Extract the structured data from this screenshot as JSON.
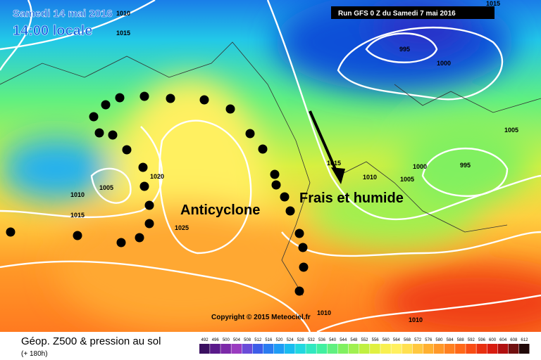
{
  "header": {
    "date": "Samedi 14 mai 2016",
    "time": "14:00 locale",
    "run": "Run GFS 0 Z du Samedi 7 mai 2016"
  },
  "isobar_labels": [
    "1010",
    "1015",
    "1015",
    "995",
    "1000",
    "1005",
    "1000",
    "995",
    "1010",
    "1005",
    "1015",
    "1020",
    "1005",
    "1010",
    "1015",
    "1025",
    "1010",
    "1010"
  ],
  "annotations": {
    "high": "Anticyclone",
    "low": "Frais et humide",
    "copyright": "Copyright © 2015 Meteociel.fr"
  },
  "footer": {
    "title": "Géop. Z500 & pression au sol",
    "lead": "(+ 180h)"
  },
  "legend": {
    "values": [
      492,
      496,
      500,
      504,
      508,
      512,
      516,
      520,
      524,
      528,
      532,
      536,
      540,
      544,
      548,
      552,
      556,
      560,
      564,
      568,
      572,
      576,
      580,
      584,
      588,
      592,
      596,
      600,
      604,
      608,
      612
    ],
    "colors": [
      "#3a1060",
      "#5a1a8a",
      "#7b2aa8",
      "#9a3cc0",
      "#6a4cd8",
      "#3d5de8",
      "#2a7cf0",
      "#1e9cf5",
      "#18bcf0",
      "#20d8e0",
      "#30e8c0",
      "#40f0a0",
      "#60f080",
      "#80f060",
      "#a0f050",
      "#c0f040",
      "#e0f040",
      "#f8f050",
      "#fff060",
      "#ffe050",
      "#ffc840",
      "#ffb030",
      "#ff9828",
      "#ff8020",
      "#ff6818",
      "#f84c14",
      "#e83010",
      "#d81c10",
      "#b01010",
      "#701010",
      "#200808"
    ]
  }
}
